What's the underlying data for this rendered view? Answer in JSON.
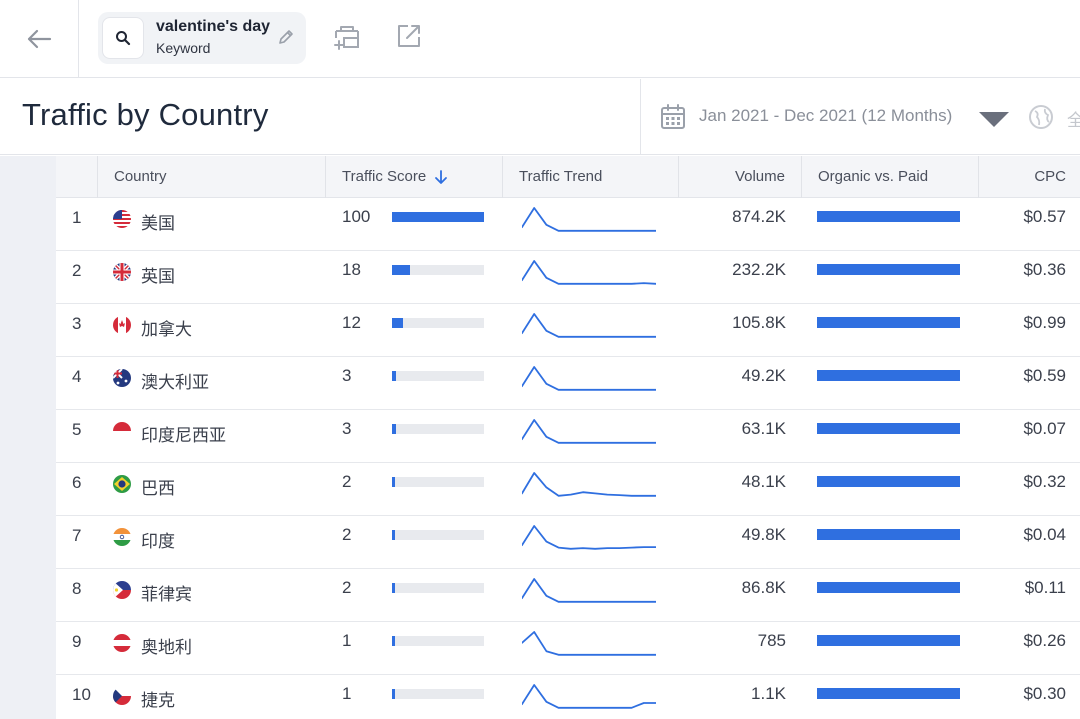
{
  "topbar": {
    "keyword": "valentine's day",
    "keyword_type": "Keyword"
  },
  "header": {
    "title": "Traffic by Country",
    "date_range": "Jan 2021 - Dec 2021 (12 Months)",
    "cut_label": "全"
  },
  "table": {
    "columns": [
      "Country",
      "Traffic Score",
      "Traffic Trend",
      "Volume",
      "Organic vs. Paid",
      "CPC"
    ],
    "rows": [
      {
        "rank": "1",
        "country": "美国",
        "flag": "us-flag-icon",
        "score": "100",
        "score_fraction": 1.0,
        "trend": [
          0.2,
          1.0,
          0.3,
          0.05,
          0.05,
          0.05,
          0.05,
          0.05,
          0.05,
          0.05,
          0.05,
          0.05
        ],
        "volume": "874.2K",
        "cpc": "$0.57"
      },
      {
        "rank": "2",
        "country": "英国",
        "flag": "uk-flag-icon",
        "score": "18",
        "score_fraction": 0.2,
        "trend": [
          0.2,
          1.0,
          0.3,
          0.05,
          0.05,
          0.05,
          0.05,
          0.05,
          0.05,
          0.05,
          0.08,
          0.05
        ],
        "volume": "232.2K",
        "cpc": "$0.36"
      },
      {
        "rank": "3",
        "country": "加拿大",
        "flag": "canada-flag-icon",
        "score": "12",
        "score_fraction": 0.12,
        "trend": [
          0.2,
          1.0,
          0.3,
          0.05,
          0.05,
          0.05,
          0.05,
          0.05,
          0.05,
          0.05,
          0.05,
          0.05
        ],
        "volume": "105.8K",
        "cpc": "$0.99"
      },
      {
        "rank": "4",
        "country": "澳大利亚",
        "flag": "australia-flag-icon",
        "score": "3",
        "score_fraction": 0.04,
        "trend": [
          0.2,
          1.0,
          0.3,
          0.05,
          0.05,
          0.05,
          0.05,
          0.05,
          0.05,
          0.05,
          0.05,
          0.05
        ],
        "volume": "49.2K",
        "cpc": "$0.59"
      },
      {
        "rank": "5",
        "country": "印度尼西亚",
        "flag": "indonesia-flag-icon",
        "score": "3",
        "score_fraction": 0.04,
        "trend": [
          0.2,
          1.0,
          0.3,
          0.05,
          0.05,
          0.05,
          0.05,
          0.05,
          0.05,
          0.05,
          0.05,
          0.05
        ],
        "volume": "63.1K",
        "cpc": "$0.07"
      },
      {
        "rank": "6",
        "country": "巴西",
        "flag": "brazil-flag-icon",
        "score": "2",
        "score_fraction": 0.03,
        "trend": [
          0.15,
          1.0,
          0.4,
          0.05,
          0.1,
          0.2,
          0.15,
          0.1,
          0.08,
          0.05,
          0.05,
          0.05
        ],
        "volume": "48.1K",
        "cpc": "$0.32"
      },
      {
        "rank": "7",
        "country": "印度",
        "flag": "india-flag-icon",
        "score": "2",
        "score_fraction": 0.03,
        "trend": [
          0.2,
          1.0,
          0.35,
          0.1,
          0.05,
          0.08,
          0.05,
          0.08,
          0.08,
          0.1,
          0.12,
          0.12
        ],
        "volume": "49.8K",
        "cpc": "$0.04"
      },
      {
        "rank": "8",
        "country": "菲律宾",
        "flag": "philippines-flag-icon",
        "score": "2",
        "score_fraction": 0.03,
        "trend": [
          0.2,
          1.0,
          0.3,
          0.05,
          0.05,
          0.05,
          0.05,
          0.05,
          0.05,
          0.05,
          0.05,
          0.05
        ],
        "volume": "86.8K",
        "cpc": "$0.11"
      },
      {
        "rank": "9",
        "country": "奥地利",
        "flag": "austria-flag-icon",
        "score": "1",
        "score_fraction": 0.02,
        "trend": [
          0.55,
          1.0,
          0.2,
          0.05,
          0.05,
          0.05,
          0.05,
          0.05,
          0.05,
          0.05,
          0.05,
          0.05
        ],
        "volume": "785",
        "cpc": "$0.26"
      },
      {
        "rank": "10",
        "country": "捷克",
        "flag": "czech-flag-icon",
        "score": "1",
        "score_fraction": 0.02,
        "trend": [
          0.2,
          1.0,
          0.3,
          0.05,
          0.05,
          0.05,
          0.05,
          0.05,
          0.05,
          0.05,
          0.25,
          0.25
        ],
        "volume": "1.1K",
        "cpc": "$0.30"
      }
    ]
  },
  "colors": {
    "accent": "#2f6fe0",
    "track": "#e8eaee",
    "trend_line": "#2f6fe0"
  }
}
